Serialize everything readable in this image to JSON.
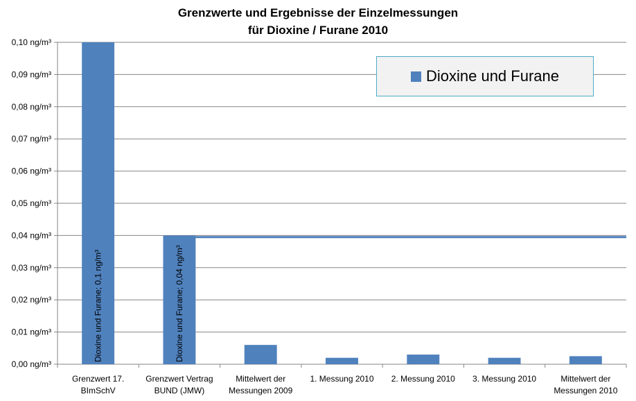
{
  "chart_data": {
    "type": "bar",
    "title": [
      "Grenzwerte und Ergebnisse der Einzelmessungen",
      "für Dioxine / Furane 2010"
    ],
    "categories": [
      [
        "Grenzwert 17.",
        "BImSchV"
      ],
      [
        "Grenzwert Vertrag",
        "BUND (JMW)"
      ],
      [
        "Mittelwert der",
        "Messungen 2009"
      ],
      [
        "1. Messung 2010"
      ],
      [
        "2. Messung 2010"
      ],
      [
        "3. Messung 2010"
      ],
      [
        "Mittelwert der",
        "Messungen 2010"
      ]
    ],
    "series": [
      {
        "name": "Dioxine und Furane",
        "values": [
          0.1,
          0.04,
          0.006,
          0.002,
          0.003,
          0.002,
          0.0025
        ]
      }
    ],
    "bar_labels": [
      "Dioxine und Furane; 0,1 ng/m³",
      "Dioxine und Furane; 0,04 ng/m³",
      "",
      "",
      "",
      "",
      ""
    ],
    "reference_line": {
      "value": 0.0395,
      "from_category": 1
    },
    "ylim": [
      0,
      0.1
    ],
    "yticks": [
      0,
      0.01,
      0.02,
      0.03,
      0.04,
      0.05,
      0.06,
      0.07,
      0.08,
      0.09,
      0.1
    ],
    "ytick_labels": [
      "0,00 ng/m³",
      "0,01 ng/m³",
      "0,02 ng/m³",
      "0,03 ng/m³",
      "0,04 ng/m³",
      "0,05 ng/m³",
      "0,06 ng/m³",
      "0,07 ng/m³",
      "0,08 ng/m³",
      "0,09 ng/m³",
      "0,10 ng/m³"
    ],
    "xlabel": "",
    "ylabel": "",
    "grid": true,
    "legend_position": "top-right",
    "colors": {
      "bar": "#4f81bd",
      "reference_line": "#4f81bd",
      "grid": "#868686",
      "axis": "#868686",
      "legend_border": "#4bacc6",
      "legend_background": "#f2f2f2"
    }
  }
}
